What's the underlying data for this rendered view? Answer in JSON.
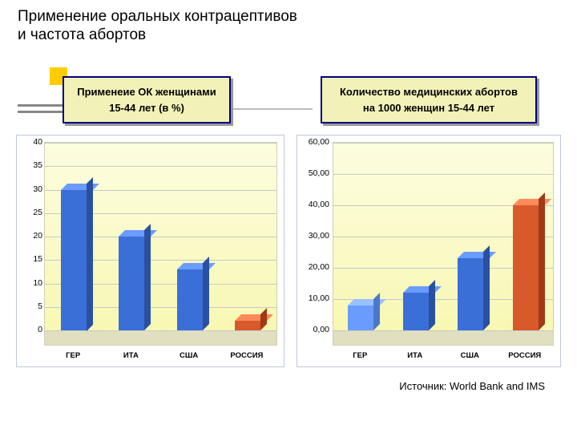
{
  "title_line1": "Применение оральных контрацептивов",
  "title_line2": "и частота абортов",
  "left_subtitle_l1": "Применеие ОК женщинами",
  "left_subtitle_l2": "15-44  лет (в %)",
  "right_subtitle_l1": "Количество медицинских абортов",
  "right_subtitle_l2": "на 1000 женщин 15-44 лет",
  "source": "Источник: World Bank and IMS",
  "chart_left": {
    "type": "bar",
    "ylim": [
      0,
      40
    ],
    "ytick_step": 5,
    "yticks": [
      "0",
      "5",
      "10",
      "15",
      "20",
      "25",
      "30",
      "35",
      "40"
    ],
    "y_decimal": false,
    "categories": [
      "ГЕР",
      "ИТА",
      "США",
      "РОССИЯ"
    ],
    "values": [
      30,
      20,
      13,
      2
    ],
    "bar_front": [
      "#3a6fd8",
      "#3a6fd8",
      "#3a6fd8",
      "#d85a2a"
    ],
    "bar_top": [
      "#6a9cff",
      "#6a9cff",
      "#6a9cff",
      "#ff8a5a"
    ],
    "bar_side": [
      "#2a50a0",
      "#2a50a0",
      "#2a50a0",
      "#a03a18"
    ],
    "panel_bg": "linear-gradient(#fdfde0,#f7f7b0)"
  },
  "chart_right": {
    "type": "bar",
    "ylim": [
      0,
      60
    ],
    "ytick_step": 10,
    "yticks": [
      "0,00",
      "10,00",
      "20,00",
      "30,00",
      "40,00",
      "50,00",
      "60,00"
    ],
    "y_decimal": true,
    "categories": [
      "ГЕР",
      "ИТА",
      "США",
      "РОССИЯ"
    ],
    "values": [
      8,
      12,
      23,
      40
    ],
    "bar_front": [
      "#6a9cff",
      "#3a6fd8",
      "#3a6fd8",
      "#d85a2a"
    ],
    "bar_top": [
      "#9ac0ff",
      "#6a9cff",
      "#6a9cff",
      "#ff8a5a"
    ],
    "bar_side": [
      "#4a78c8",
      "#2a50a0",
      "#2a50a0",
      "#a03a18"
    ],
    "panel_bg": "linear-gradient(#fdfde0,#f7f7b0)"
  },
  "layout": {
    "title_fontsize": 19,
    "subtitle_fontsize": 13,
    "axis_fontsize": 10.5,
    "xlabel_fontsize": 9.5,
    "subtitle_bg": "#f2f2b8",
    "subtitle_border": "#000080",
    "accent_color": "#ffcc00",
    "floor_color": "#e0e0c0",
    "grid_color": "#c8c8c8",
    "background": "#ffffff"
  }
}
